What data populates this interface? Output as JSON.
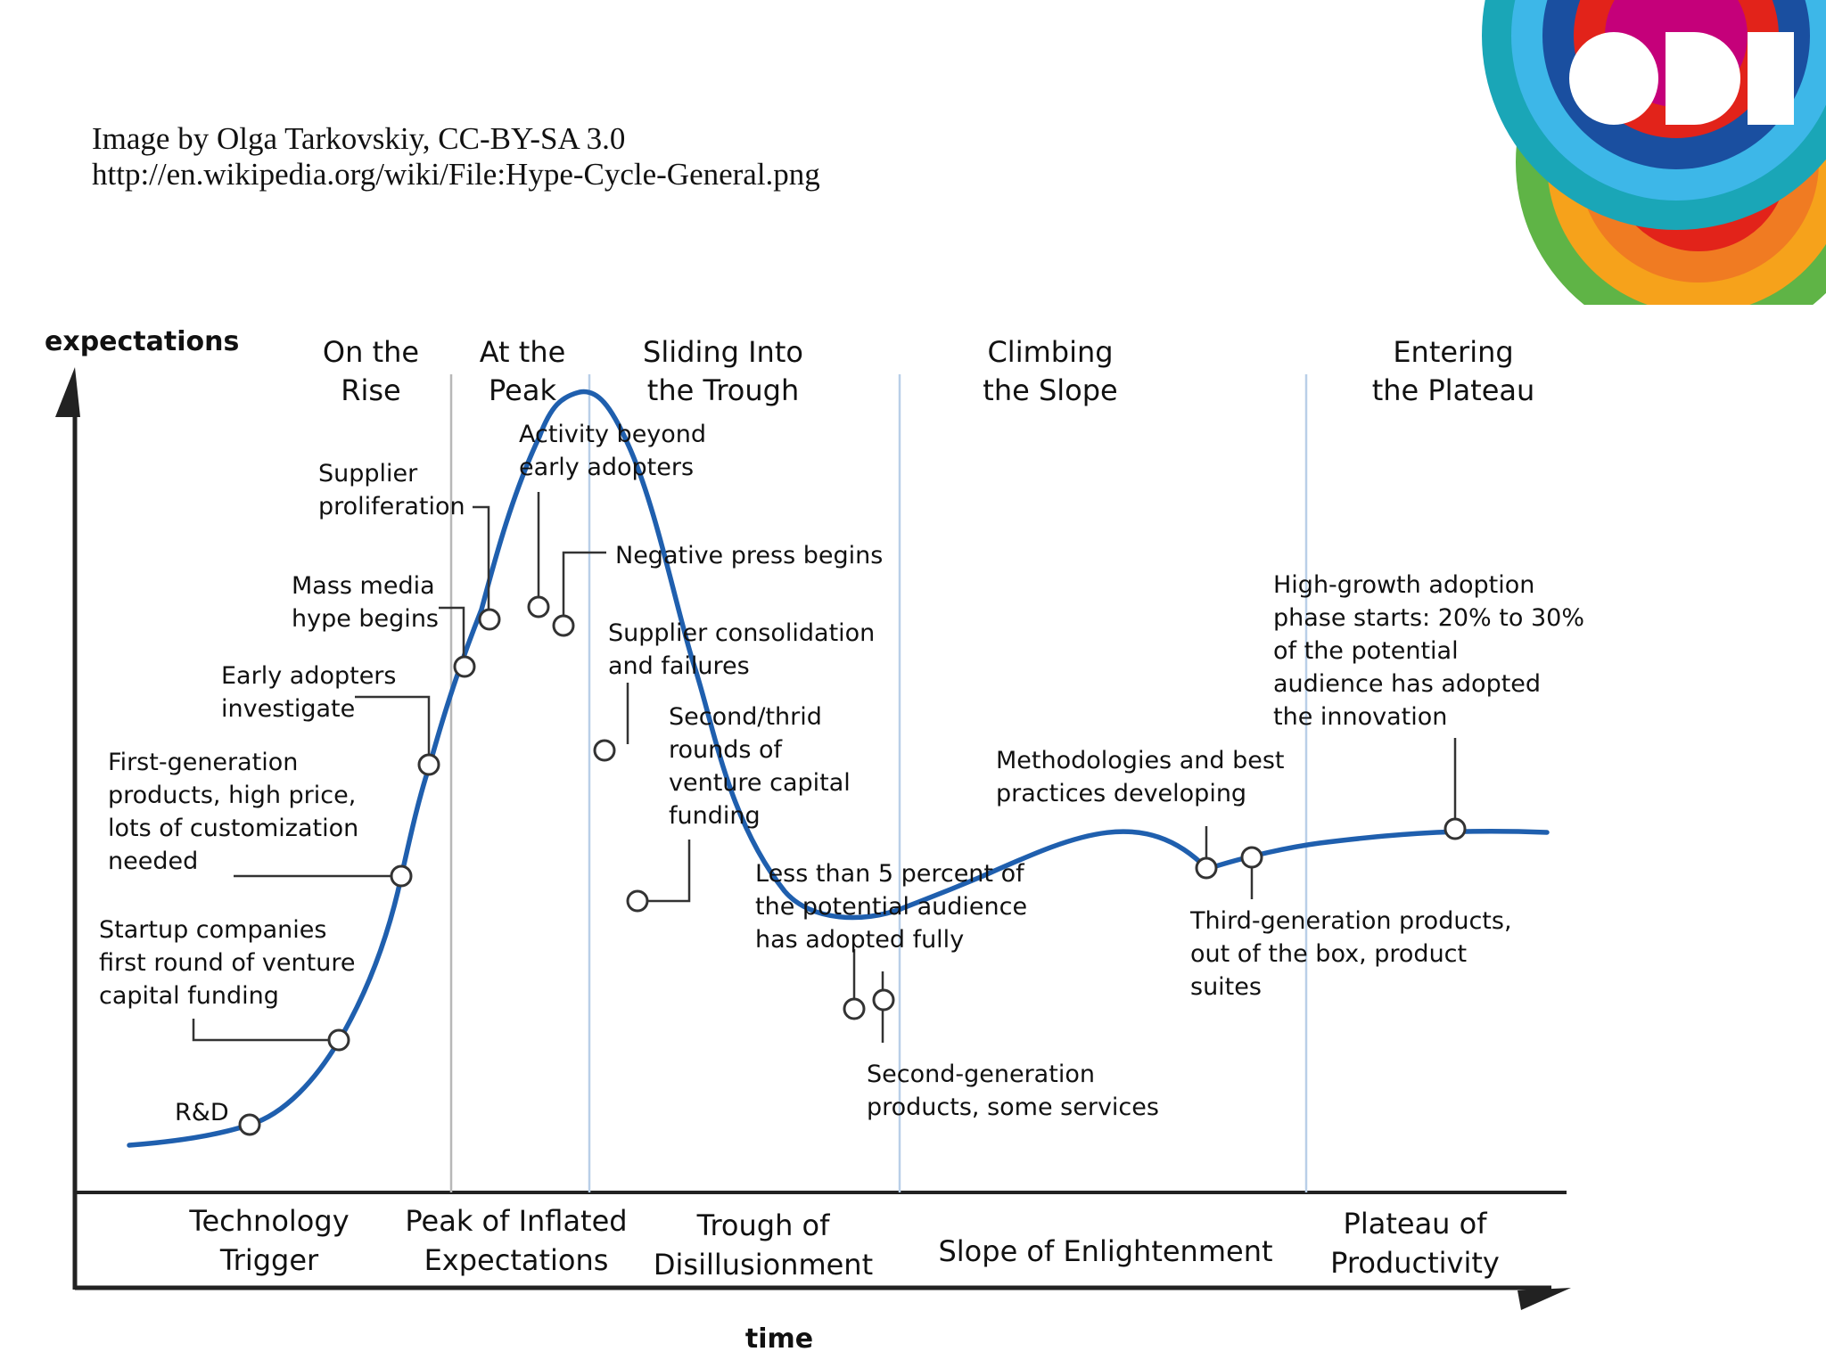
{
  "credit": {
    "line1": "Image by Olga Tarkovskiy, CC-BY-SA 3.0",
    "line2": "http://en.wikipedia.org/wiki/File:Hype-Cycle-General.png"
  },
  "logo": {
    "text": "ODI",
    "colors": [
      "#1a4fa0",
      "#1aa6b7",
      "#3db7e8",
      "#e2231a",
      "#f07b22",
      "#f6a21b",
      "#5fb446",
      "#c5007a",
      "#9b59b6"
    ]
  },
  "axes": {
    "y_label": "expectations",
    "x_label": "time"
  },
  "top_headers": [
    [
      "On the",
      "Rise"
    ],
    [
      "At the",
      "Peak"
    ],
    [
      "Sliding Into",
      "the Trough"
    ],
    [
      "Climbing",
      "the Slope"
    ],
    [
      "Entering",
      "the Plateau"
    ]
  ],
  "phases": [
    [
      "Technology",
      "Trigger"
    ],
    [
      "Peak of Inflated",
      "Expectations"
    ],
    [
      "Trough of",
      "Disillusionment"
    ],
    [
      "Slope of Enlightenment"
    ],
    [
      "Plateau of",
      "Productivity"
    ]
  ],
  "events": [
    {
      "lines": [
        "R&D"
      ]
    },
    {
      "lines": [
        "Startup companies",
        "first round of venture",
        "capital funding"
      ]
    },
    {
      "lines": [
        "First-generation",
        "products, high price,",
        "lots of customization",
        "needed"
      ]
    },
    {
      "lines": [
        "Early adopters",
        "investigate"
      ]
    },
    {
      "lines": [
        "Mass media",
        "hype begins"
      ]
    },
    {
      "lines": [
        "Supplier",
        "proliferation"
      ]
    },
    {
      "lines": [
        "Activity beyond",
        "early adopters"
      ]
    },
    {
      "lines": [
        "Negative press begins"
      ]
    },
    {
      "lines": [
        "Supplier consolidation",
        "and failures"
      ]
    },
    {
      "lines": [
        "Second/thrid",
        "rounds of",
        "venture capital",
        "funding"
      ]
    },
    {
      "lines": [
        "Less than 5 percent of",
        "the potential audience",
        "has adopted fully"
      ]
    },
    {
      "lines": [
        "Second-generation",
        "products, some services"
      ]
    },
    {
      "lines": [
        "Methodologies and best",
        "practices developing"
      ]
    },
    {
      "lines": [
        "Third-generation products,",
        "out of the box, product",
        "suites"
      ]
    },
    {
      "lines": [
        "High-growth adoption",
        "phase starts: 20% to 30%",
        "of the potential",
        "audience has adopted",
        "the innovation"
      ]
    }
  ],
  "colors": {
    "curve": "#1f5fae",
    "divider_gray": "#b8b8b8",
    "divider_blue": "#b9cfe8",
    "axis": "#222222"
  }
}
